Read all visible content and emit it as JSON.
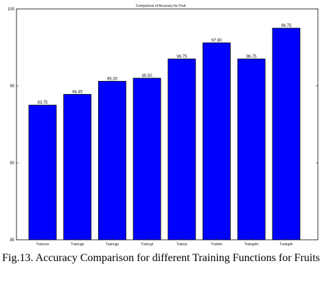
{
  "caption": "Fig.13. Accuracy Comparison for different Training Functions for Fruits",
  "colors": {
    "bar_fill": "#0000ff",
    "axis": "#000000",
    "background": "#ffffff"
  },
  "chart_data": {
    "type": "bar",
    "title": "Comparison of Accuracy for Fruit",
    "xlabel": "",
    "ylabel": "",
    "categories": [
      "Trainoss",
      "Traincgp",
      "Traincgp",
      "Traincgf",
      "Trainrp",
      "Trainlm",
      "Traingdm",
      "Traingdx"
    ],
    "values": [
      93.75,
      94.45,
      95.3,
      95.5,
      96.75,
      97.8,
      96.75,
      98.75
    ],
    "value_labels": [
      "93.75",
      "94.45",
      "95.30",
      "95.50",
      "96.75",
      "97.80",
      "96.75",
      "98.75"
    ],
    "ylim": [
      85,
      100
    ],
    "yticks": [
      85,
      90,
      95,
      100
    ],
    "ytick_labels": [
      "85",
      "90",
      "95",
      "100"
    ],
    "grid": false,
    "legend": "none"
  }
}
